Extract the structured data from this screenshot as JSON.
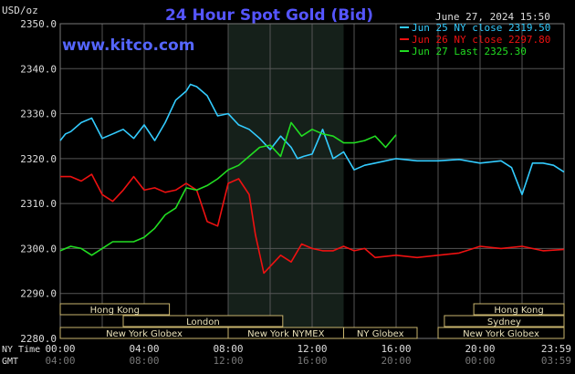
{
  "chart_data": {
    "type": "line",
    "title": "24 Hour Spot Gold (Bid)",
    "source": "www.kitco.com",
    "date_label": "June 27, 2024 15:50",
    "ylabel": "USD/oz",
    "ylim": [
      2280,
      2350
    ],
    "yticks": [
      "2350.0",
      "2340.0",
      "2330.0",
      "2320.0",
      "2310.0",
      "2300.0",
      "2290.0",
      "2280.0"
    ],
    "xlim": [
      0,
      24
    ],
    "x_row_label_ny": "NY Time",
    "x_row_label_gmt": "GMT",
    "xticks_ny": [
      "00:00",
      "04:00",
      "08:00",
      "12:00",
      "16:00",
      "20:00",
      "23:59"
    ],
    "xticks_gmt": [
      "04:00",
      "08:00",
      "12:00",
      "16:00",
      "20:00",
      "00:00",
      "03:59"
    ],
    "grid": true,
    "legend_position": "top-right",
    "colors": {
      "series1": "#33ccff",
      "series2": "#ee1111",
      "series3": "#22dd22",
      "title": "#5555ff",
      "source": "#5566ff",
      "shade": "#15201a",
      "session_box_border": "#c8b46e"
    },
    "series": [
      {
        "name": "Jun 25 NY close 2319.50",
        "color": "#33ccff",
        "x": [
          0,
          0.25,
          0.5,
          1,
          1.5,
          2,
          2.5,
          3,
          3.5,
          4,
          4.5,
          5,
          5.5,
          6,
          6.2,
          6.5,
          7,
          7.5,
          8,
          8.5,
          9,
          9.5,
          10,
          10.5,
          11,
          11.3,
          11.6,
          12,
          12.5,
          13,
          13.5,
          14,
          14.5,
          15,
          16,
          17,
          18,
          19,
          20,
          21,
          21.5,
          22,
          22.5,
          23,
          23.5,
          24
        ],
        "y": [
          2324,
          2325.5,
          2326,
          2328,
          2329,
          2324.5,
          2325.5,
          2326.5,
          2324.5,
          2327.5,
          2324,
          2328,
          2333,
          2335,
          2336.5,
          2336,
          2334,
          2329.5,
          2330,
          2327.5,
          2326.5,
          2324.5,
          2322,
          2325,
          2322.5,
          2320,
          2320.5,
          2321,
          2326.5,
          2320,
          2321.5,
          2317.5,
          2318.5,
          2319,
          2320,
          2319.5,
          2319.5,
          2319.8,
          2319,
          2319.5,
          2318,
          2312,
          2319,
          2319,
          2318.5,
          2317
        ]
      },
      {
        "name": "Jun 26 NY close 2297.80",
        "color": "#ee1111",
        "x": [
          0,
          0.5,
          1,
          1.5,
          2,
          2.5,
          3,
          3.5,
          4,
          4.5,
          5,
          5.5,
          6,
          6.5,
          7,
          7.5,
          8,
          8.5,
          9,
          9.3,
          9.7,
          10,
          10.5,
          11,
          11.5,
          12,
          12.5,
          13,
          13.5,
          14,
          14.5,
          15,
          16,
          17,
          18,
          19,
          20,
          21,
          22,
          23,
          24
        ],
        "y": [
          2316,
          2316,
          2315,
          2316.5,
          2312,
          2310.5,
          2313,
          2316,
          2313,
          2313.5,
          2312.5,
          2313,
          2314.5,
          2313,
          2306,
          2305,
          2314.5,
          2315.5,
          2312,
          2303,
          2294.5,
          2296,
          2298.5,
          2297,
          2301,
          2300,
          2299.5,
          2299.5,
          2300.5,
          2299.5,
          2300,
          2298,
          2298.5,
          2298,
          2298.5,
          2299,
          2300.5,
          2300,
          2300.5,
          2299.5,
          2299.8
        ]
      },
      {
        "name": "Jun 27 Last 2325.30",
        "color": "#22dd22",
        "x": [
          0,
          0.5,
          1,
          1.5,
          2,
          2.5,
          3,
          3.5,
          4,
          4.5,
          5,
          5.5,
          6,
          6.5,
          7,
          7.5,
          8,
          8.5,
          9,
          9.5,
          10,
          10.5,
          11,
          11.5,
          12,
          12.5,
          13,
          13.5,
          14,
          14.5,
          15,
          15.5,
          16
        ],
        "y": [
          2299.5,
          2300.5,
          2300,
          2298.5,
          2300,
          2301.5,
          2301.5,
          2301.5,
          2302.5,
          2304.5,
          2307.5,
          2309,
          2313.5,
          2313,
          2314,
          2315.5,
          2317.5,
          2318.5,
          2320.5,
          2322.5,
          2323,
          2320.5,
          2328,
          2325,
          2326.5,
          2325.5,
          2325,
          2323.5,
          2323.5,
          2324,
          2325,
          2322.5,
          2325.3
        ]
      }
    ],
    "sessions": [
      {
        "label": "Hong Kong",
        "start": 0,
        "end": 5.2,
        "row": 0
      },
      {
        "label": "Hong Kong",
        "start": 19.7,
        "end": 24,
        "row": 0
      },
      {
        "label": "London",
        "start": 3,
        "end": 10.6,
        "row": 1
      },
      {
        "label": "Sydney",
        "start": 18.3,
        "end": 24,
        "row": 1
      },
      {
        "label": "New York Globex",
        "start": 0,
        "end": 8,
        "row": 2
      },
      {
        "label": "New York NYMEX",
        "start": 8,
        "end": 13.5,
        "row": 2
      },
      {
        "label": "NY Globex",
        "start": 13.5,
        "end": 17,
        "row": 2
      },
      {
        "label": "New York Globex",
        "start": 18,
        "end": 24,
        "row": 2
      }
    ],
    "shade_range": [
      8,
      13.5
    ]
  }
}
